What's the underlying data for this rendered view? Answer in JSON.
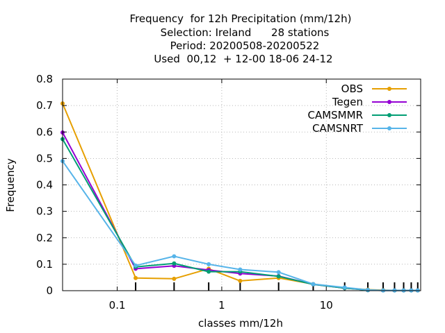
{
  "chart_data": {
    "type": "line",
    "title_lines": [
      "Frequency  for 12h Precipitation (mm/12h)",
      "Selection: Ireland      28 stations",
      "Period: 20200508-20200522",
      "Used  00,12  + 12-00 18-06 24-12"
    ],
    "xlabel": "classes mm/12h",
    "ylabel": "Frequency",
    "x_scale": "log",
    "xlim": [
      0.03,
      80
    ],
    "ylim": [
      0,
      0.8
    ],
    "x_ticks": [
      {
        "value": 0.1,
        "label": "0.1"
      },
      {
        "value": 1,
        "label": "1"
      },
      {
        "value": 10,
        "label": "10"
      }
    ],
    "y_ticks": [
      {
        "value": 0,
        "label": "0"
      },
      {
        "value": 0.1,
        "label": "0.1"
      },
      {
        "value": 0.2,
        "label": "0.2"
      },
      {
        "value": 0.3,
        "label": "0.3"
      },
      {
        "value": 0.4,
        "label": "0.4"
      },
      {
        "value": 0.5,
        "label": "0.5"
      },
      {
        "value": 0.6,
        "label": "0.6"
      },
      {
        "value": 0.7,
        "label": "0.7"
      },
      {
        "value": 0.8,
        "label": "0.8"
      }
    ],
    "class_marks": [
      0.15,
      0.35,
      0.75,
      1.5,
      3.5,
      7.5,
      15,
      25,
      35,
      45,
      55,
      65,
      75
    ],
    "grid": true,
    "legend_position": "top-right",
    "x": [
      0.03,
      0.15,
      0.35,
      0.75,
      1.5,
      3.5,
      7.5,
      15,
      25,
      35,
      45,
      55,
      65,
      75
    ],
    "series": [
      {
        "name": "OBS",
        "color": "#e69f00",
        "marker": "circle",
        "values": [
          0.708,
          0.048,
          0.045,
          0.083,
          0.037,
          0.048,
          0.025,
          0.01,
          0.004,
          0.002,
          0.001,
          0.001,
          0.001,
          0.001
        ]
      },
      {
        "name": "Tegen",
        "color": "#9400d3",
        "marker": "circle",
        "values": [
          0.598,
          0.083,
          0.094,
          0.078,
          0.065,
          0.055,
          0.024,
          0.01,
          0.002,
          0.001,
          0.001,
          0.001,
          0.001,
          0.001
        ]
      },
      {
        "name": "CAMSMMR",
        "color": "#009e73",
        "marker": "circle",
        "values": [
          0.573,
          0.09,
          0.103,
          0.072,
          0.072,
          0.054,
          0.024,
          0.01,
          0.002,
          0.001,
          0.001,
          0.001,
          0.001,
          0.001
        ]
      },
      {
        "name": "CAMSNRT",
        "color": "#56b4e9",
        "marker": "circle",
        "values": [
          0.49,
          0.095,
          0.13,
          0.1,
          0.08,
          0.07,
          0.025,
          0.012,
          0.003,
          0.001,
          0.001,
          0.001,
          0.001,
          0.001
        ]
      }
    ]
  }
}
